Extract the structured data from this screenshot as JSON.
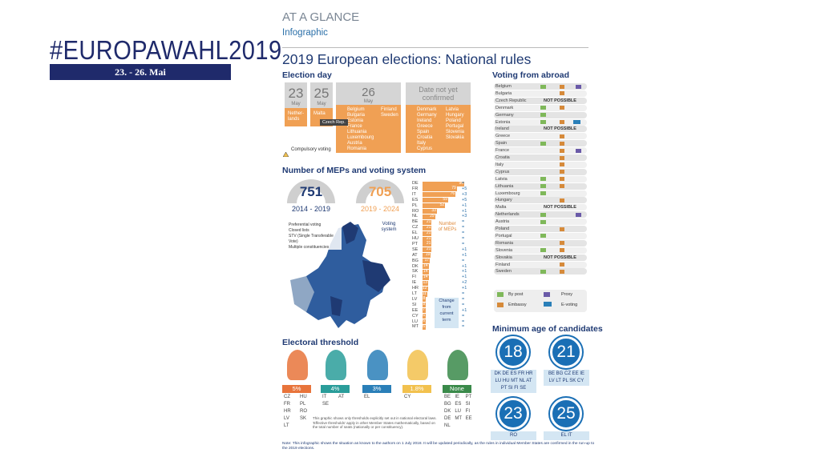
{
  "left": {
    "hashtag": "#EUROPAWAHL2019",
    "dates": "23. - 26. Mai"
  },
  "header": {
    "kicker": "AT A GLANCE",
    "type": "Infographic",
    "title": "2019 European elections: National rules"
  },
  "election_day": {
    "heading": "Election day",
    "days": [
      {
        "day": "23",
        "month": "May",
        "countries": "Nether-\nlands"
      },
      {
        "day": "25",
        "month": "May",
        "countries": "Malta"
      },
      {
        "day": "26",
        "month": "May",
        "col1": [
          "Belgium",
          "Bulgaria",
          "Estonia",
          "France",
          "Lithuania",
          "Luxembourg",
          "Austria",
          "Romania"
        ],
        "col2": [
          "Finland",
          "Sweden"
        ],
        "czech": "Czech Rep."
      },
      {
        "day": "Date not yet confirmed",
        "col1": [
          "Denmark",
          "Germany",
          "Ireland",
          "Greece",
          "Spain",
          "Croatia",
          "Italy",
          "Cyprus"
        ],
        "col2": [
          "Latvia",
          "Hungary",
          "Poland",
          "Portugal",
          "Slovenia",
          "Slovakia"
        ]
      }
    ],
    "legend": "Compulsory voting"
  },
  "meps": {
    "heading": "Number of MEPs and voting system",
    "seats": [
      {
        "n": "751",
        "period": "2014 - 2019",
        "color": "#1f3a73"
      },
      {
        "n": "705",
        "period": "2019 - 2024",
        "color": "#f0a054"
      }
    ],
    "legend": [
      "Preferential voting",
      "Closed lists",
      "STV (Single Transferable Vote)",
      "Multiple constituencies"
    ],
    "voting_system": "Voting\nsystem",
    "number_label": "Number\nof MEPs",
    "change_label": "Change\nfrom\ncurrent\nterm",
    "countries": [
      "DE",
      "FR",
      "IT",
      "ES",
      "PL",
      "RO",
      "NL",
      "BE",
      "CZ",
      "EL",
      "HU",
      "PT",
      "SE",
      "AT",
      "BG",
      "DK",
      "SK",
      "FI",
      "IE",
      "HR",
      "LT",
      "LV",
      "SI",
      "EE",
      "CY",
      "LU",
      "MT"
    ],
    "seats_2019": [
      96,
      79,
      76,
      59,
      52,
      33,
      29,
      21,
      21,
      21,
      21,
      21,
      21,
      19,
      17,
      14,
      14,
      14,
      13,
      12,
      11,
      8,
      8,
      7,
      6,
      6,
      6
    ],
    "change": [
      "=",
      "+5",
      "+3",
      "+5",
      "+1",
      "+1",
      "+3",
      "=",
      "=",
      "=",
      "=",
      "=",
      "+1",
      "+1",
      "=",
      "+1",
      "+1",
      "+1",
      "+2",
      "+1",
      "=",
      "=",
      "=",
      "+1",
      "=",
      "=",
      "="
    ]
  },
  "threshold": {
    "heading": "Electoral threshold",
    "groups": [
      {
        "label": "5%",
        "color": "#e8743b",
        "countries": [
          "CZ",
          "HU",
          "FR",
          "PL",
          "HR",
          "RO",
          "LV",
          "SK",
          "LT"
        ]
      },
      {
        "label": "4%",
        "color": "#2a9d9a",
        "countries": [
          "IT",
          "AT",
          "SE"
        ]
      },
      {
        "label": "3%",
        "color": "#2a7fb8",
        "countries": [
          "EL"
        ]
      },
      {
        "label": "1.8%",
        "color": "#f2c14e",
        "countries": [
          "CY"
        ]
      },
      {
        "label": "None",
        "color": "#3a8a4a",
        "countries": [
          "BE",
          "IE",
          "PT",
          "BG",
          "ES",
          "SI",
          "DK",
          "LU",
          "FI",
          "DE",
          "MT",
          "EE",
          "NL"
        ]
      }
    ],
    "footnote": "This graphic shows only thresholds explicitly set out in national electoral laws. 'Effective thresholds' apply in other Member States mathematically, based on the total number of seats (nationally or per constituency)."
  },
  "abroad": {
    "heading": "Voting from abroad",
    "rows": [
      {
        "c": "Belgium",
        "post": true,
        "emb": true,
        "proxy": true
      },
      {
        "c": "Bulgaria",
        "emb": true
      },
      {
        "c": "Czech Republic",
        "np": "NOT POSSIBLE"
      },
      {
        "c": "Denmark",
        "post": true,
        "emb": true
      },
      {
        "c": "Germany",
        "post": true
      },
      {
        "c": "Estonia",
        "post": true,
        "emb": true,
        "ev": true
      },
      {
        "c": "Ireland",
        "np": "NOT POSSIBLE"
      },
      {
        "c": "Greece",
        "emb": true
      },
      {
        "c": "Spain",
        "post": true,
        "emb": true
      },
      {
        "c": "France",
        "emb": true,
        "proxy": true
      },
      {
        "c": "Croatia",
        "emb": true
      },
      {
        "c": "Italy",
        "emb": true
      },
      {
        "c": "Cyprus",
        "emb": true
      },
      {
        "c": "Latvia",
        "post": true,
        "emb": true
      },
      {
        "c": "Lithuania",
        "post": true,
        "emb": true
      },
      {
        "c": "Luxembourg",
        "post": true
      },
      {
        "c": "Hungary",
        "emb": true
      },
      {
        "c": "Malta",
        "np": "NOT POSSIBLE"
      },
      {
        "c": "Netherlands",
        "post": true,
        "proxy": true
      },
      {
        "c": "Austria",
        "post": true
      },
      {
        "c": "Poland",
        "emb": true
      },
      {
        "c": "Portugal",
        "post": true
      },
      {
        "c": "Romania",
        "emb": true
      },
      {
        "c": "Slovenia",
        "post": true,
        "emb": true
      },
      {
        "c": "Slovakia",
        "np": "NOT POSSIBLE"
      },
      {
        "c": "Finland",
        "emb": true
      },
      {
        "c": "Sweden",
        "post": true,
        "emb": true
      }
    ],
    "legend": [
      "By post",
      "Proxy",
      "Embassy",
      "E-voting"
    ]
  },
  "age": {
    "heading": "Minimum age of candidates",
    "groups": [
      {
        "age": "18",
        "countries": "DK DE ES FR HR\nLU HU MT NL AT\nPT SI FI SE"
      },
      {
        "age": "21",
        "countries": "BE BG CZ EE IE\nLV LT PL SK CY"
      },
      {
        "age": "23",
        "countries": "RO"
      },
      {
        "age": "25",
        "countries": "EL IT"
      }
    ]
  },
  "note": "Note: This infographic shows the situation as known to the authors on 1 July 2018. It will be updated periodically, as the rules in individual Member States are confirmed in the run-up to the 2019 elections."
}
